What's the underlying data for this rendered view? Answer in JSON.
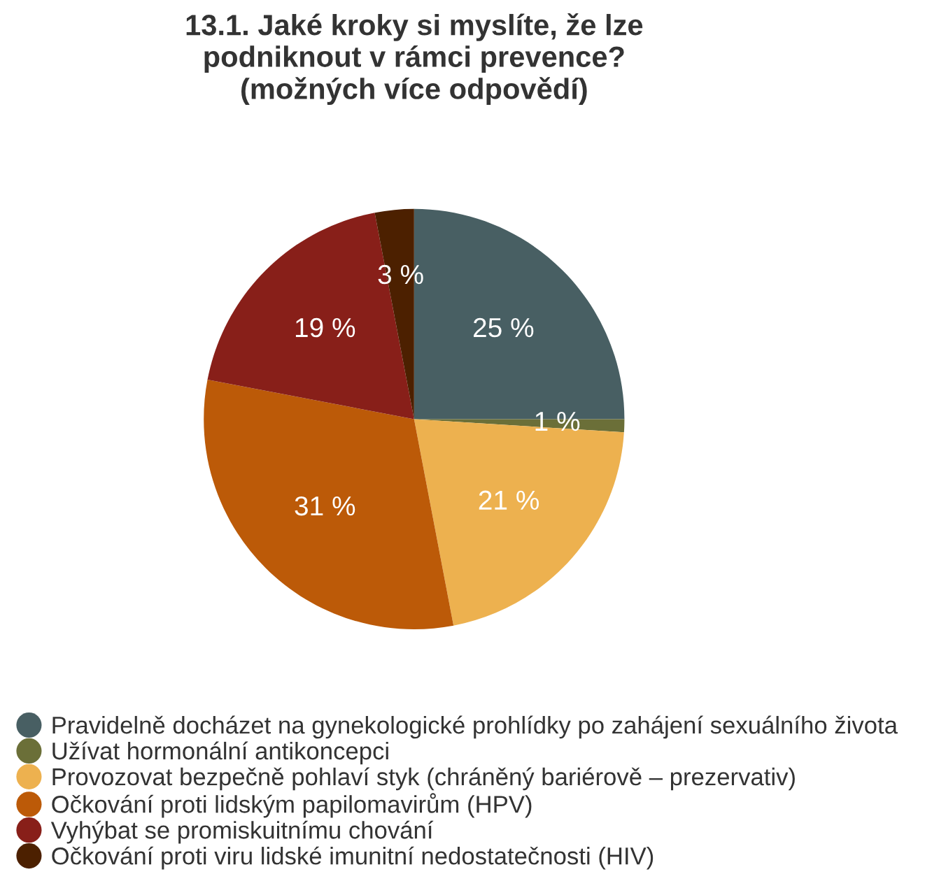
{
  "chart_data": {
    "type": "pie",
    "title": "13.1. Jaké kroky si myslíte, že lze\npodniknout v rámci prevence?\n(možných více odpovědí)",
    "categories": [
      "Pravidelně docházet na gynekologické prohlídky po zahájení sexuálního života",
      "Užívat hormonální antikoncepci",
      "Provozovat bezpečně pohlaví styk (chráněný bariérově – prezervativ)",
      "Očkování proti lidským papilomavirům (HPV)",
      "Vyhýbat se promiskuitnímu chování",
      "Očkování proti viru lidské imunitní nedostatečnosti (HIV)"
    ],
    "values": [
      25,
      1,
      21,
      31,
      19,
      3
    ],
    "value_labels": [
      "25 %",
      "1 %",
      "21 %",
      "31 %",
      "19 %",
      "3 %"
    ],
    "colors": [
      "#485f63",
      "#6b6f38",
      "#edb14f",
      "#bc5a08",
      "#881f19",
      "#4c2000"
    ],
    "legend": "bottom"
  }
}
